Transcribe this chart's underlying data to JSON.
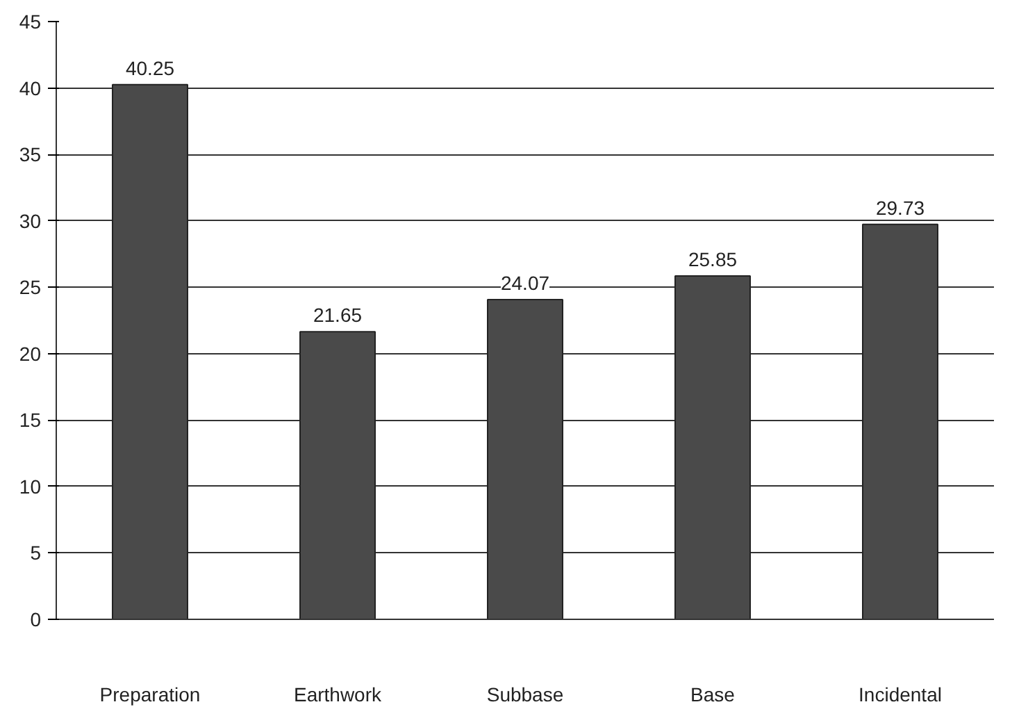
{
  "chart_data": {
    "type": "bar",
    "categories": [
      "Preparation",
      "Earthwork",
      "Subbase",
      "Base",
      "Incidental"
    ],
    "values": [
      40.25,
      21.65,
      24.07,
      25.85,
      29.73
    ],
    "color": "#4a4a4a",
    "ylim": [
      0,
      45
    ],
    "yticks": [
      0,
      5,
      10,
      15,
      20,
      25,
      30,
      35,
      40,
      45
    ],
    "grid": "y",
    "data_labels": true
  }
}
